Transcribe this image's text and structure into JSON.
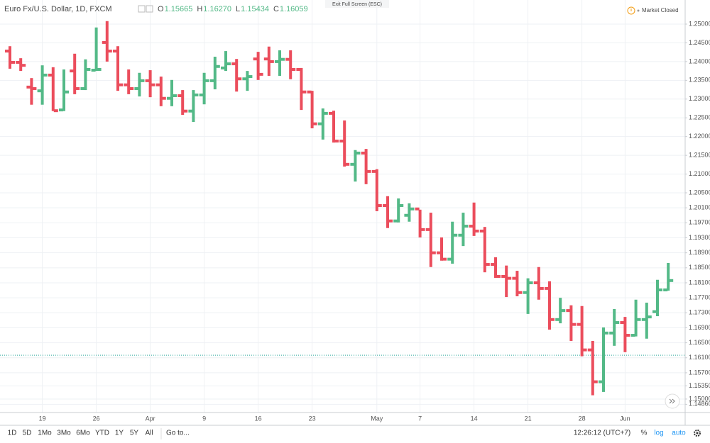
{
  "chart_data": {
    "type": "ohlc",
    "title": "Euro Fx/U.S. Dollar, 1D, FXCM",
    "ohlc_header": [
      {
        "key": "O",
        "value": "1.15665"
      },
      {
        "key": "H",
        "value": "1.16270"
      },
      {
        "key": "L",
        "value": "1.15434"
      },
      {
        "key": "C",
        "value": "1.16059"
      }
    ],
    "categories": [
      null,
      null,
      null,
      "19",
      null,
      null,
      null,
      null,
      "26",
      null,
      null,
      null,
      null,
      "Apr",
      null,
      null,
      null,
      null,
      "9",
      null,
      null,
      null,
      null,
      "16",
      null,
      null,
      null,
      null,
      "23",
      null,
      null,
      null,
      null,
      null,
      "May",
      null,
      null,
      null,
      "7",
      null,
      null,
      null,
      null,
      "14",
      null,
      null,
      null,
      null,
      "21",
      null,
      null,
      null,
      null,
      "28",
      null,
      null,
      null,
      "Jun",
      null,
      null,
      null,
      null
    ],
    "open": [
      1.2428,
      1.2398,
      1.2332,
      1.2322,
      1.2364,
      1.2271,
      1.2375,
      1.2328,
      1.2377,
      1.2451,
      1.2428,
      1.2338,
      1.2328,
      1.2349,
      1.2338,
      1.2302,
      1.2309,
      1.2268,
      1.2311,
      1.2349,
      1.2383,
      1.2394,
      1.2354,
      1.2407,
      1.2407,
      1.24,
      1.2406,
      1.2379,
      1.2319,
      1.2234,
      1.2262,
      1.2188,
      1.2126,
      1.2156,
      1.2107,
      1.2016,
      1.1975,
      1.199,
      1.2007,
      1.1952,
      1.189,
      1.1873,
      1.1937,
      1.1961,
      1.1948,
      1.1859,
      1.1827,
      1.1822,
      1.1784,
      1.181,
      1.1795,
      1.1712,
      1.1736,
      1.1699,
      1.1631,
      1.1546,
      1.1676,
      1.1704,
      1.167,
      1.1712,
      1.1733,
      1.1791
    ],
    "high": [
      1.2441,
      1.2409,
      1.2356,
      1.239,
      1.2385,
      1.2379,
      1.2421,
      1.2406,
      1.2491,
      1.2508,
      1.2441,
      1.2379,
      1.237,
      1.2377,
      1.236,
      1.2351,
      1.2324,
      1.2324,
      1.237,
      1.2413,
      1.2428,
      1.2407,
      1.2375,
      1.2426,
      1.244,
      1.243,
      1.243,
      1.2383,
      1.2322,
      1.2275,
      1.2269,
      1.2243,
      1.2164,
      1.2167,
      1.2113,
      1.2041,
      1.2035,
      1.2022,
      1.2005,
      1.1997,
      1.1931,
      1.1973,
      1.1997,
      1.2024,
      1.1959,
      1.1878,
      1.1856,
      1.1842,
      1.1822,
      1.1852,
      1.1814,
      1.177,
      1.175,
      1.1748,
      1.1655,
      1.1691,
      1.174,
      1.1719,
      1.1765,
      1.1757,
      1.1818,
      1.1863
    ],
    "low": [
      1.2381,
      1.2375,
      1.2285,
      1.2285,
      1.2268,
      1.2268,
      1.2313,
      1.2324,
      1.2375,
      1.24,
      1.2322,
      1.2313,
      1.2307,
      1.2305,
      1.2281,
      1.2281,
      1.2258,
      1.2239,
      1.2286,
      1.2326,
      1.2375,
      1.232,
      1.2322,
      1.2351,
      1.2362,
      1.2362,
      1.2353,
      1.2271,
      1.2222,
      1.2192,
      1.2184,
      1.212,
      1.208,
      1.2073,
      1.2001,
      1.1956,
      1.1971,
      1.1973,
      1.1931,
      1.1852,
      1.1869,
      1.1861,
      1.1908,
      1.1935,
      1.1838,
      1.1823,
      1.1772,
      1.1774,
      1.1727,
      1.1765,
      1.1685,
      1.1702,
      1.1655,
      1.1614,
      1.151,
      1.1519,
      1.1642,
      1.1625,
      1.1667,
      1.1661,
      1.1721,
      1.1789
    ],
    "close": [
      1.2398,
      1.239,
      1.2328,
      1.2364,
      1.2269,
      1.2319,
      1.2328,
      1.2379,
      1.2379,
      1.2428,
      1.2338,
      1.2328,
      1.2349,
      1.2338,
      1.2302,
      1.2309,
      1.2268,
      1.2311,
      1.2349,
      1.2387,
      1.2394,
      1.2354,
      1.236,
      1.2366,
      1.24,
      1.2406,
      1.2379,
      1.2319,
      1.2234,
      1.2262,
      1.2188,
      1.2126,
      1.2156,
      1.2107,
      1.2016,
      1.1975,
      1.2016,
      1.2007,
      1.1952,
      1.189,
      1.1873,
      1.1937,
      1.1961,
      1.1948,
      1.1859,
      1.1827,
      1.1822,
      1.1784,
      1.181,
      1.1795,
      1.1712,
      1.1736,
      1.1699,
      1.1631,
      1.1546,
      1.1676,
      1.1704,
      1.167,
      1.1712,
      1.1719,
      1.1791,
      1.1816
    ],
    "up_color": "#53b987",
    "down_color": "#eb4d5c",
    "ylim": [
      1.1464,
      1.2517
    ],
    "yticks": [
      {
        "value": 1.25,
        "label": "1.25000"
      },
      {
        "value": 1.245,
        "label": "1.24500"
      },
      {
        "value": 1.24,
        "label": "1.24000"
      },
      {
        "value": 1.235,
        "label": "1.23500"
      },
      {
        "value": 1.23,
        "label": "1.23000"
      },
      {
        "value": 1.225,
        "label": "1.22500"
      },
      {
        "value": 1.22,
        "label": "1.22000"
      },
      {
        "value": 1.215,
        "label": "1.21500"
      },
      {
        "value": 1.21,
        "label": "1.21000"
      },
      {
        "value": 1.205,
        "label": "1.20500"
      },
      {
        "value": 1.201,
        "label": "1.20100"
      },
      {
        "value": 1.197,
        "label": "1.19700"
      },
      {
        "value": 1.193,
        "label": "1.19300"
      },
      {
        "value": 1.189,
        "label": "1.18900"
      },
      {
        "value": 1.185,
        "label": "1.18500"
      },
      {
        "value": 1.181,
        "label": "1.18100"
      },
      {
        "value": 1.177,
        "label": "1.17700"
      },
      {
        "value": 1.173,
        "label": "1.17300"
      },
      {
        "value": 1.169,
        "label": "1.16900"
      },
      {
        "value": 1.165,
        "label": "1.16500"
      },
      {
        "value": 1.161,
        "label": "1.16100"
      },
      {
        "value": 1.157,
        "label": "1.15700"
      },
      {
        "value": 1.1535,
        "label": "1.15350"
      },
      {
        "value": 1.15,
        "label": "1.15000"
      },
      {
        "value": 1.1486,
        "label": "1.14860"
      }
    ],
    "grid": true,
    "price_line": 1.1617,
    "price_line_color": "#26a69a"
  },
  "toolbar": {
    "exit_full_screen": "Exit Full Screen (ESC)",
    "market_status": "Market Closed",
    "ranges": [
      "1D",
      "5D",
      "1Mo",
      "3Mo",
      "6Mo",
      "YTD",
      "1Y",
      "5Y",
      "All"
    ],
    "goto": "Go to...",
    "time": "12:26:12 (UTC+7)",
    "scale_options": [
      "%",
      "log",
      "auto"
    ]
  }
}
